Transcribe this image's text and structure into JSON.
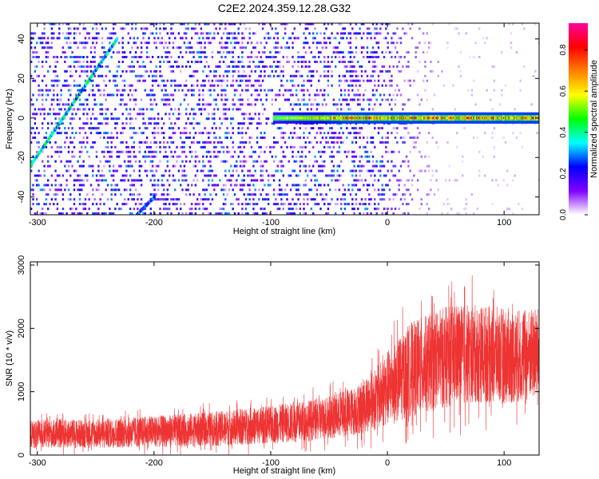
{
  "title": "C2E2.2024.359.12.28.G32",
  "chart_data": [
    {
      "type": "heatmap",
      "xlabel": "Height of straight line (km)",
      "ylabel": "Frequency (Hz)",
      "xlim": [
        -306,
        130
      ],
      "ylim": [
        -49,
        48
      ],
      "xticks": [
        -300,
        -200,
        -100,
        0,
        100
      ],
      "yticks": [
        -40,
        -20,
        0,
        20,
        40
      ],
      "colorbar": {
        "label": "Normalized spectral amplitude",
        "range": [
          0,
          0.93
        ],
        "ticks": [
          0,
          0.2,
          0.4,
          0.6,
          0.8
        ],
        "colormap": [
          "#ffffff",
          "#8000ff",
          "#0000ff",
          "#00ffff",
          "#00ff00",
          "#ffff00",
          "#ff8000",
          "#ff0000",
          "#ff00a0"
        ]
      },
      "features": [
        {
          "name": "diagonal streak",
          "x": [
            -306,
            -232
          ],
          "y": [
            -24,
            40
          ],
          "amplitude": 0.3
        },
        {
          "name": "faint diagonal streak",
          "x": [
            -215,
            -200
          ],
          "y": [
            -49,
            -40
          ],
          "amplitude": 0.2
        },
        {
          "name": "horizontal line",
          "x": [
            -98,
            130
          ],
          "y": [
            0,
            0
          ],
          "amplitude": 0.85
        }
      ],
      "noise_extent_x": [
        -306,
        -10
      ]
    },
    {
      "type": "line",
      "xlabel": "Height of straight line (km)",
      "ylabel": "SNR (10 * v/v)",
      "xlim": [
        -306,
        130
      ],
      "ylim": [
        0,
        3050
      ],
      "xticks": [
        -300,
        -200,
        -100,
        0,
        100
      ],
      "yticks": [
        0,
        1000,
        2000,
        3000
      ],
      "color": "#ee3333",
      "envelope": {
        "x": [
          -306,
          -250,
          -200,
          -150,
          -100,
          -60,
          -30,
          -10,
          0,
          20,
          50,
          80,
          110,
          130
        ],
        "mean": [
          330,
          340,
          370,
          410,
          480,
          560,
          680,
          880,
          1050,
          1350,
          1550,
          1600,
          1550,
          1600
        ],
        "spread": [
          220,
          230,
          250,
          270,
          300,
          330,
          380,
          480,
          600,
          750,
          800,
          780,
          750,
          720
        ]
      }
    }
  ]
}
